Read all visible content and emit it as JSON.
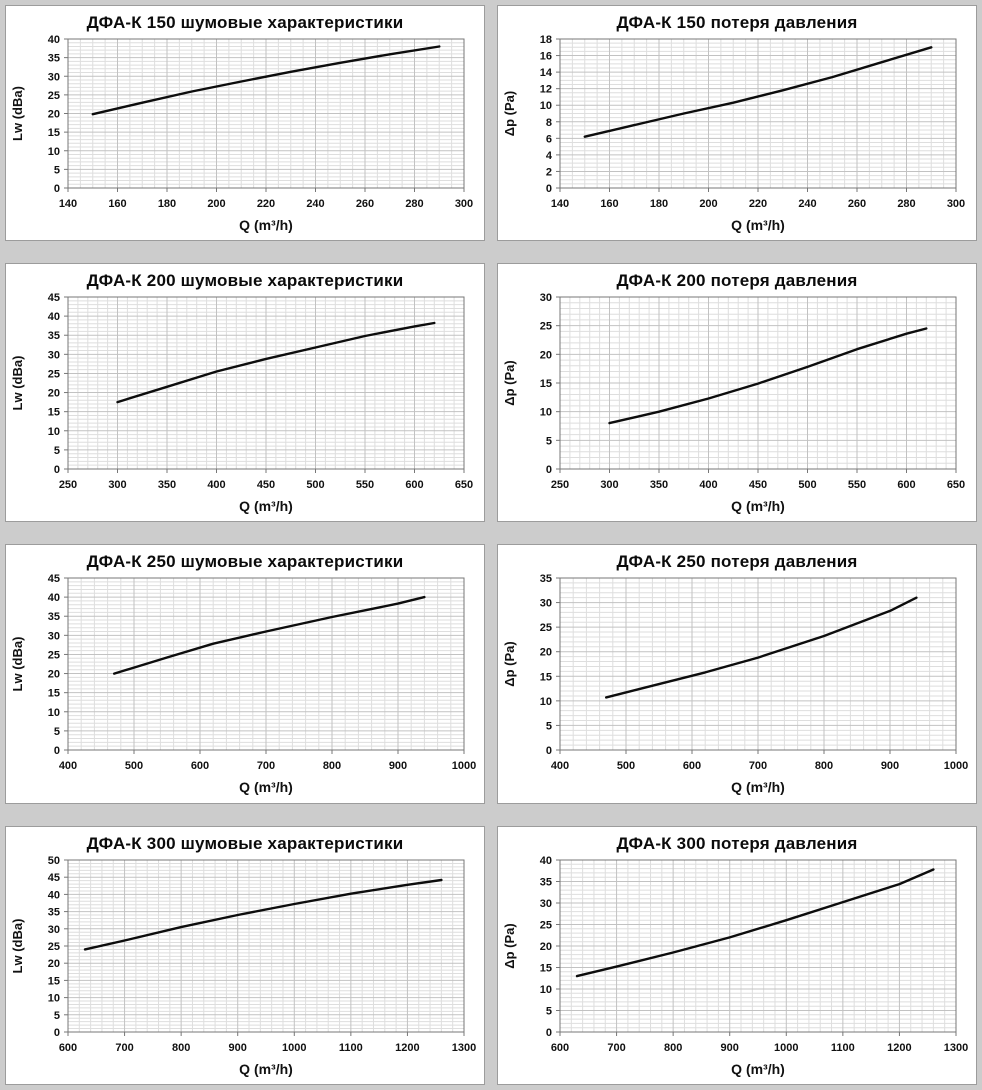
{
  "page": {
    "background_color": "#cccccc",
    "panel_background": "#ffffff",
    "panel_border_color": "#9c9c9c",
    "minor_grid_color": "#dedede",
    "major_grid_color": "#c2c2c2",
    "plot_border_color": "#777777",
    "curve_color": "#0d0d0d",
    "text_color": "#111111"
  },
  "chart_data": [
    {
      "type": "line",
      "title": "ДФА-К 150 шумовые характеристики",
      "xlabel": "Q (m³/h)",
      "ylabel": "Lw (dBa)",
      "xlim": [
        140,
        300
      ],
      "xstep": 20,
      "xminor": 5,
      "ylim": [
        0,
        40
      ],
      "ystep": 5,
      "yminor": 1,
      "grid": true,
      "legend": "none",
      "x": [
        150,
        170,
        190,
        210,
        230,
        250,
        270,
        290
      ],
      "y": [
        19.8,
        22.9,
        25.9,
        28.6,
        31.2,
        33.6,
        35.9,
        38.0
      ]
    },
    {
      "type": "line",
      "title": "ДФА-К 150 потеря давления",
      "xlabel": "Q (m³/h)",
      "ylabel": "Δp (Pa)",
      "xlim": [
        140,
        300
      ],
      "xstep": 20,
      "xminor": 5,
      "ylim": [
        0,
        18
      ],
      "ystep": 2,
      "yminor": 0.5,
      "grid": true,
      "legend": "none",
      "x": [
        150,
        170,
        190,
        210,
        230,
        250,
        270,
        290
      ],
      "y": [
        6.2,
        7.6,
        9.0,
        10.3,
        11.8,
        13.4,
        15.2,
        17.0
      ]
    },
    {
      "type": "line",
      "title": "ДФА-К 200 шумовые характеристики",
      "xlabel": "Q (m³/h)",
      "ylabel": "Lw (dBa)",
      "xlim": [
        250,
        650
      ],
      "xstep": 50,
      "xminor": 10,
      "ylim": [
        0,
        45
      ],
      "ystep": 5,
      "yminor": 1,
      "grid": true,
      "legend": "none",
      "x": [
        300,
        350,
        400,
        450,
        500,
        550,
        600,
        620
      ],
      "y": [
        17.5,
        21.5,
        25.5,
        28.8,
        31.8,
        34.8,
        37.3,
        38.2
      ]
    },
    {
      "type": "line",
      "title": "ДФА-К 200 потеря давления",
      "xlabel": "Q (m³/h)",
      "ylabel": "Δp (Pa)",
      "xlim": [
        250,
        650
      ],
      "xstep": 50,
      "xminor": 10,
      "ylim": [
        0,
        30
      ],
      "ystep": 5,
      "yminor": 1,
      "grid": true,
      "legend": "none",
      "x": [
        300,
        350,
        400,
        450,
        500,
        550,
        600,
        620
      ],
      "y": [
        8.0,
        10.0,
        12.3,
        14.9,
        17.8,
        20.9,
        23.6,
        24.5
      ]
    },
    {
      "type": "line",
      "title": "ДФА-К 250 шумовые характеристики",
      "xlabel": "Q (m³/h)",
      "ylabel": "Lw (dBa)",
      "xlim": [
        400,
        1000
      ],
      "xstep": 100,
      "xminor": 20,
      "ylim": [
        0,
        45
      ],
      "ystep": 5,
      "yminor": 1,
      "grid": true,
      "legend": "none",
      "x": [
        470,
        550,
        620,
        700,
        800,
        900,
        940
      ],
      "y": [
        20.0,
        24.2,
        27.8,
        31.0,
        34.8,
        38.3,
        40.0
      ]
    },
    {
      "type": "line",
      "title": "ДФА-К 250 потеря давления",
      "xlabel": "Q (m³/h)",
      "ylabel": "Δp (Pa)",
      "xlim": [
        400,
        1000
      ],
      "xstep": 100,
      "xminor": 20,
      "ylim": [
        0,
        35
      ],
      "ystep": 5,
      "yminor": 1,
      "grid": true,
      "legend": "none",
      "x": [
        470,
        550,
        620,
        700,
        800,
        900,
        940
      ],
      "y": [
        10.7,
        13.4,
        15.8,
        18.8,
        23.2,
        28.3,
        31.0
      ]
    },
    {
      "type": "line",
      "title": "ДФА-К 300 шумовые характеристики",
      "xlabel": "Q (m³/h)",
      "ylabel": "Lw (dBa)",
      "xlim": [
        600,
        1300
      ],
      "xstep": 100,
      "xminor": 20,
      "ylim": [
        0,
        50
      ],
      "ystep": 5,
      "yminor": 1,
      "grid": true,
      "legend": "none",
      "x": [
        630,
        700,
        800,
        900,
        1000,
        1100,
        1200,
        1260
      ],
      "y": [
        24.0,
        26.6,
        30.5,
        34.0,
        37.2,
        40.2,
        42.8,
        44.2
      ]
    },
    {
      "type": "line",
      "title": "ДФА-К 300 потеря давления",
      "xlabel": "Q (m³/h)",
      "ylabel": "Δp (Pa)",
      "xlim": [
        600,
        1300
      ],
      "xstep": 100,
      "xminor": 20,
      "ylim": [
        0,
        40
      ],
      "ystep": 5,
      "yminor": 1,
      "grid": true,
      "legend": "none",
      "x": [
        630,
        700,
        800,
        900,
        1000,
        1100,
        1200,
        1260
      ],
      "y": [
        13.0,
        15.2,
        18.5,
        22.0,
        26.0,
        30.2,
        34.4,
        37.8
      ]
    }
  ]
}
